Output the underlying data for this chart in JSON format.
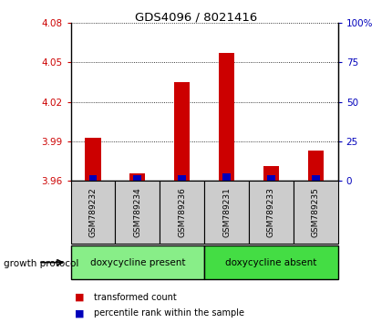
{
  "title": "GDS4096 / 8021416",
  "samples": [
    "GSM789232",
    "GSM789234",
    "GSM789236",
    "GSM789231",
    "GSM789233",
    "GSM789235"
  ],
  "red_values": [
    3.993,
    3.966,
    4.035,
    4.057,
    3.971,
    3.983
  ],
  "blue_pct": [
    3.5,
    3.5,
    3.5,
    4.5,
    3.5,
    3.5
  ],
  "ymin": 3.96,
  "ymax": 4.08,
  "yticks": [
    3.96,
    3.99,
    4.02,
    4.05,
    4.08
  ],
  "ytick_labels": [
    "3.96",
    "3.99",
    "4.02",
    "4.05",
    "4.08"
  ],
  "y2min": 0,
  "y2max": 100,
  "y2ticks": [
    0,
    25,
    50,
    75,
    100
  ],
  "y2tick_labels": [
    "0",
    "25",
    "50",
    "75",
    "100%"
  ],
  "groups": [
    {
      "label": "doxycycline present",
      "color": "#88ee88",
      "start": 0,
      "end": 2
    },
    {
      "label": "doxycycline absent",
      "color": "#44dd44",
      "start": 3,
      "end": 5
    }
  ],
  "group_label": "growth protocol",
  "bar_width": 0.35,
  "blue_bar_width": 0.18,
  "red_color": "#cc0000",
  "blue_color": "#0000bb",
  "left_tick_color": "#cc0000",
  "right_tick_color": "#0000bb",
  "sample_bg": "#cccccc",
  "plot_bg": "#ffffff",
  "bg_color": "#ffffff",
  "grid_linestyle": ":",
  "grid_color": "#000000",
  "grid_lw": 0.6
}
